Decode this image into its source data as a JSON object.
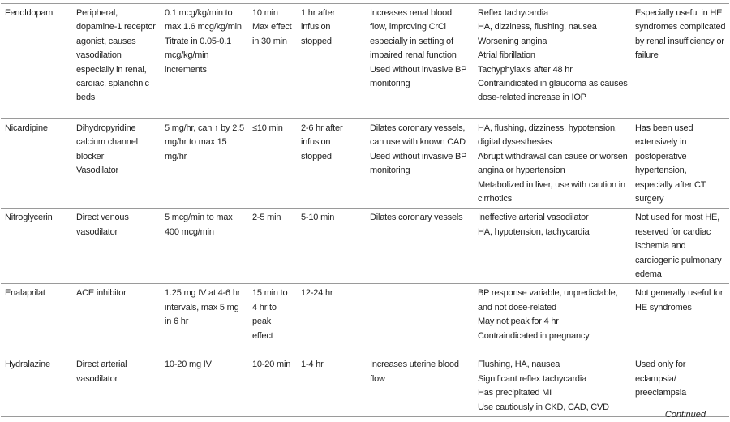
{
  "table": {
    "rows": [
      [
        [
          "Fenoldopam"
        ],
        [
          "Peripheral, dopamine-1 receptor agonist, causes vasodilation especially in renal, cardiac, splanchnic beds"
        ],
        [
          "0.1 mcg/kg/min to max 1.6 mcg/kg/min",
          "Titrate in 0.05-0.1 mcg/kg/min increments"
        ],
        [
          "10 min",
          "Max effect in 30 min"
        ],
        [
          "1 hr after infusion stopped"
        ],
        [
          "Increases renal blood flow, improving CrCl especially in setting of impaired renal function",
          "Used without invasive BP monitoring"
        ],
        [
          "Reflex tachycardia",
          "HA, dizziness, flushing, nausea",
          "Worsening angina",
          "Atrial fibrillation",
          "Tachyphylaxis after 48 hr",
          "Contraindicated in glaucoma as causes dose-related increase in IOP"
        ],
        [
          "Especially useful in HE syndromes complicated by renal insufficiency or failure"
        ]
      ],
      [
        [
          "Nicardipine"
        ],
        [
          "Dihydropyridine calcium channel blocker",
          "Vasodilator"
        ],
        [
          "5 mg/hr, can ↑ by 2.5 mg/hr to max 15 mg/hr"
        ],
        [
          "≤10 min"
        ],
        [
          "2-6 hr after infusion stopped"
        ],
        [
          "Dilates coronary vessels, can use with known CAD",
          "Used without invasive BP monitoring"
        ],
        [
          "HA, flushing, dizziness, hypotension, digital dysesthesias",
          "Abrupt withdrawal can cause or worsen angina or hypertension",
          "Metabolized in liver, use with caution in cirrhotics"
        ],
        [
          "Has been used extensively in postoperative hypertension, especially after CT surgery"
        ]
      ],
      [
        [
          "Nitroglycerin"
        ],
        [
          "Direct venous vasodilator"
        ],
        [
          "5 mcg/min to max 400 mcg/min"
        ],
        [
          "2-5 min"
        ],
        [
          "5-10 min"
        ],
        [
          "Dilates coronary vessels"
        ],
        [
          "Ineffective arterial vasodilator",
          "HA, hypotension, tachycardia"
        ],
        [
          "Not used for most HE, reserved for cardiac ischemia and cardiogenic pulmonary edema"
        ]
      ],
      [
        [
          "Enalaprilat"
        ],
        [
          "ACE inhibitor"
        ],
        [
          "1.25 mg IV at 4-6 hr intervals, max 5 mg in 6 hr"
        ],
        [
          "15 min to 4 hr to peak effect"
        ],
        [
          "12-24 hr"
        ],
        [],
        [
          "BP response variable, unpredictable, and not dose-related",
          "May not peak for 4 hr",
          "Contraindicated in pregnancy"
        ],
        [
          "Not generally useful for HE syndromes"
        ]
      ],
      [
        [
          "Hydralazine"
        ],
        [
          "Direct arterial vasodilator"
        ],
        [
          "10-20 mg IV"
        ],
        [
          "10-20 min"
        ],
        [
          "1-4 hr"
        ],
        [
          "Increases uterine blood flow"
        ],
        [
          "Flushing, HA, nausea",
          "Significant reflex tachycardia",
          "Has precipitated MI",
          "Use cautiously in CKD, CAD, CVD"
        ],
        [
          "Used only for eclampsia/ preeclampsia"
        ]
      ]
    ]
  },
  "footer": {
    "note": "Continued"
  }
}
